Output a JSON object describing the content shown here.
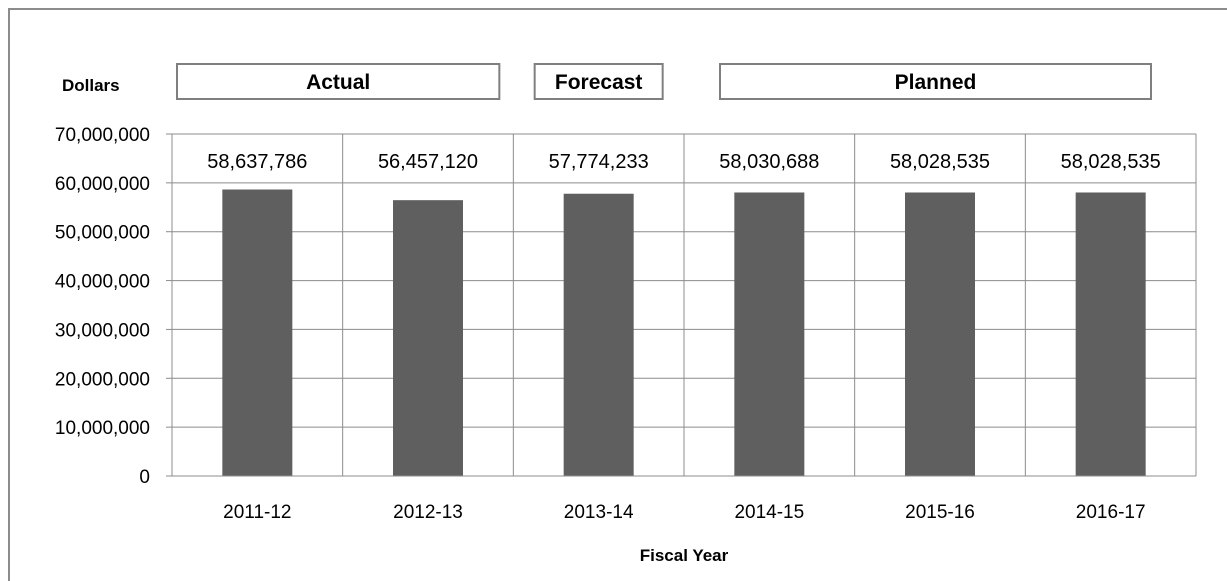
{
  "chart_data": {
    "type": "bar",
    "xlabel": "Fiscal Year",
    "ylabel": "Dollars",
    "ylim": [
      0,
      70000000
    ],
    "ytick_values": [
      0,
      10000000,
      20000000,
      30000000,
      40000000,
      50000000,
      60000000,
      70000000
    ],
    "ytick_labels": [
      "0",
      "10,000,000",
      "20,000,000",
      "30,000,000",
      "40,000,000",
      "50,000,000",
      "60,000,000",
      "70,000,000"
    ],
    "categories": [
      "2011-12",
      "2012-13",
      "2013-14",
      "2014-15",
      "2015-16",
      "2016-17"
    ],
    "values": [
      58637786,
      56457120,
      57774233,
      58030688,
      58028535,
      58028535
    ],
    "value_labels": [
      "58,637,786",
      "56,457,120",
      "57,774,233",
      "58,030,688",
      "58,028,535",
      "58,028,535"
    ],
    "bar_color": "#5f5f5f",
    "grid": true,
    "period_labels": [
      {
        "label": "Actual",
        "first": 0,
        "last": 1
      },
      {
        "label": "Forecast",
        "first": 2,
        "last": 2
      },
      {
        "label": "Planned",
        "first": 3,
        "last": 5
      }
    ]
  }
}
